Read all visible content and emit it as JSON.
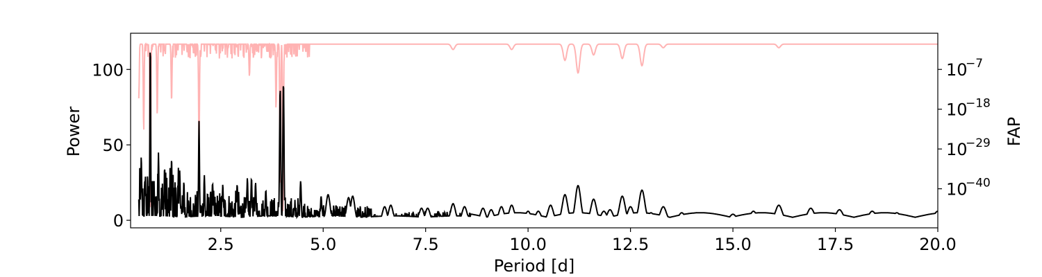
{
  "chart_data": {
    "type": "line",
    "title": "",
    "xlabel": "Period [d]",
    "ylabel": "Power",
    "ylabel_right": "FAP",
    "xlim": [
      0.3,
      20.0
    ],
    "ylim": [
      -5,
      124
    ],
    "x_ticks": [
      {
        "value": 2.5,
        "label": "2.5"
      },
      {
        "value": 5.0,
        "label": "5.0"
      },
      {
        "value": 7.5,
        "label": "7.5"
      },
      {
        "value": 10.0,
        "label": "10.0"
      },
      {
        "value": 12.5,
        "label": "12.5"
      },
      {
        "value": 15.0,
        "label": "15.0"
      },
      {
        "value": 17.5,
        "label": "17.5"
      },
      {
        "value": 20.0,
        "label": "20.0"
      }
    ],
    "y_ticks": [
      {
        "value": 0,
        "label": "0"
      },
      {
        "value": 50,
        "label": "50"
      },
      {
        "value": 100,
        "label": "100"
      }
    ],
    "right_axis": {
      "scale": "log",
      "log10_range": [
        -50.8,
        3.0
      ],
      "ticks": [
        {
          "log10": -7,
          "base": "10",
          "exp": "−7"
        },
        {
          "log10": -18,
          "base": "10",
          "exp": "−18"
        },
        {
          "log10": -29,
          "base": "10",
          "exp": "−29"
        },
        {
          "log10": -40,
          "base": "10",
          "exp": "−40"
        }
      ]
    },
    "grid": false,
    "series": [
      {
        "color": "#000000",
        "axis": "left",
        "baseline_noise": [
          {
            "x_from": 0.5,
            "x_to": 1.5,
            "max": 35
          },
          {
            "x_from": 1.5,
            "x_to": 3.0,
            "max": 20
          },
          {
            "x_from": 3.0,
            "x_to": 4.6,
            "max": 16
          },
          {
            "x_from": 4.6,
            "x_to": 6.2,
            "max": 10
          },
          {
            "x_from": 6.2,
            "x_to": 8.6,
            "max": 6
          }
        ],
        "peaks": [
          {
            "x": 0.78,
            "y": 120
          },
          {
            "x": 0.56,
            "y": 44
          },
          {
            "x": 0.66,
            "y": 30
          },
          {
            "x": 0.87,
            "y": 28
          },
          {
            "x": 0.98,
            "y": 45
          },
          {
            "x": 1.13,
            "y": 36
          },
          {
            "x": 1.3,
            "y": 42
          },
          {
            "x": 1.5,
            "y": 33
          },
          {
            "x": 1.6,
            "y": 26
          },
          {
            "x": 1.97,
            "y": 66
          },
          {
            "x": 2.1,
            "y": 30
          },
          {
            "x": 2.3,
            "y": 25
          },
          {
            "x": 2.55,
            "y": 24
          },
          {
            "x": 2.9,
            "y": 24
          },
          {
            "x": 3.15,
            "y": 28
          },
          {
            "x": 3.25,
            "y": 28
          },
          {
            "x": 3.35,
            "y": 25
          },
          {
            "x": 3.6,
            "y": 20
          },
          {
            "x": 3.95,
            "y": 88
          },
          {
            "x": 4.03,
            "y": 92
          },
          {
            "x": 4.45,
            "y": 26
          },
          {
            "x": 4.95,
            "y": 16
          },
          {
            "x": 5.12,
            "y": 17
          },
          {
            "x": 5.62,
            "y": 15
          },
          {
            "x": 5.72,
            "y": 16
          },
          {
            "x": 6.5,
            "y": 9
          },
          {
            "x": 6.65,
            "y": 10
          },
          {
            "x": 7.4,
            "y": 8
          },
          {
            "x": 7.55,
            "y": 8
          },
          {
            "x": 8.17,
            "y": 11
          },
          {
            "x": 8.45,
            "y": 9
          },
          {
            "x": 8.9,
            "y": 8
          },
          {
            "x": 9.1,
            "y": 7
          },
          {
            "x": 9.35,
            "y": 9
          },
          {
            "x": 9.6,
            "y": 10
          },
          {
            "x": 10.0,
            "y": 6
          },
          {
            "x": 10.25,
            "y": 6
          },
          {
            "x": 10.55,
            "y": 10
          },
          {
            "x": 10.9,
            "y": 17
          },
          {
            "x": 11.22,
            "y": 23
          },
          {
            "x": 11.6,
            "y": 14
          },
          {
            "x": 11.85,
            "y": 6
          },
          {
            "x": 12.0,
            "y": 7
          },
          {
            "x": 12.3,
            "y": 16
          },
          {
            "x": 12.5,
            "y": 9
          },
          {
            "x": 12.78,
            "y": 20
          },
          {
            "x": 13.0,
            "y": 5
          },
          {
            "x": 13.3,
            "y": 9
          },
          {
            "x": 13.75,
            "y": 5
          },
          {
            "x": 14.1,
            "y": 5
          },
          {
            "x": 14.5,
            "y": 4
          },
          {
            "x": 15.0,
            "y": 4
          },
          {
            "x": 15.5,
            "y": 6
          },
          {
            "x": 16.12,
            "y": 10
          },
          {
            "x": 16.9,
            "y": 8
          },
          {
            "x": 17.6,
            "y": 7
          },
          {
            "x": 18.4,
            "y": 6
          },
          {
            "x": 19.0,
            "y": 5
          },
          {
            "x": 20.0,
            "y": 6
          }
        ]
      },
      {
        "color": "#ffb3b3",
        "axis": "right",
        "baseline_log10": 0,
        "dips": [
          {
            "x": 0.5,
            "log10": -15
          },
          {
            "x": 0.62,
            "log10": -24
          },
          {
            "x": 0.78,
            "log10": -48
          },
          {
            "x": 0.95,
            "log10": -20
          },
          {
            "x": 1.3,
            "log10": -16
          },
          {
            "x": 1.97,
            "log10": -30
          },
          {
            "x": 3.2,
            "log10": -9
          },
          {
            "x": 3.85,
            "log10": -18
          },
          {
            "x": 3.95,
            "log10": -40
          },
          {
            "x": 4.02,
            "log10": -47
          },
          {
            "x": 8.17,
            "log10": -1.5
          },
          {
            "x": 9.6,
            "log10": -1.5
          },
          {
            "x": 10.9,
            "log10": -4.5
          },
          {
            "x": 11.22,
            "log10": -8
          },
          {
            "x": 11.6,
            "log10": -3
          },
          {
            "x": 12.3,
            "log10": -4
          },
          {
            "x": 12.78,
            "log10": -6
          },
          {
            "x": 13.3,
            "log10": -1
          },
          {
            "x": 16.12,
            "log10": -1
          }
        ]
      }
    ]
  }
}
